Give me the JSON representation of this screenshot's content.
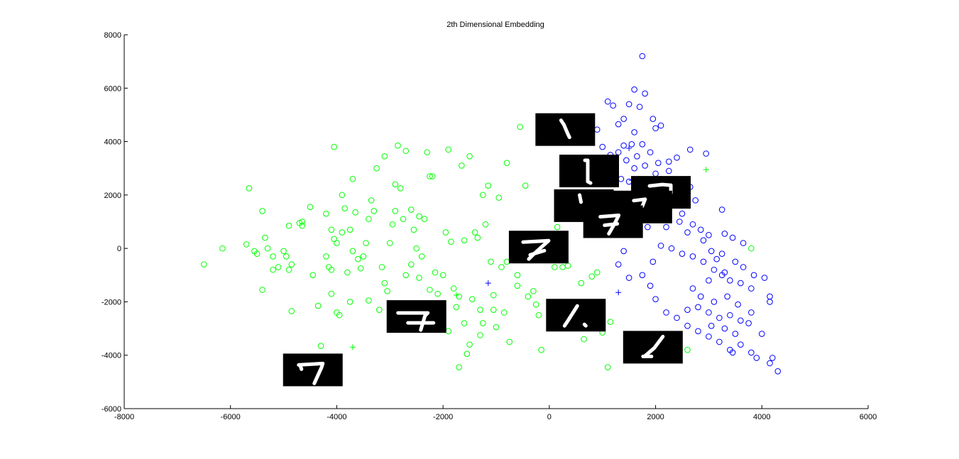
{
  "chart_data": {
    "type": "scatter",
    "title": "2th Dimensional Embedding",
    "xlabel": "",
    "ylabel": "",
    "xlim": [
      -8000,
      6000
    ],
    "ylim": [
      -6000,
      8000
    ],
    "x_ticks": [
      -8000,
      -6000,
      -4000,
      -2000,
      0,
      2000,
      4000,
      6000
    ],
    "y_ticks": [
      -6000,
      -4000,
      -2000,
      0,
      2000,
      4000,
      6000,
      8000
    ],
    "grid": false,
    "legend": "none",
    "series": [
      {
        "color": "#00ff00",
        "marker": "circle",
        "points": [
          [
            -6500,
            -600
          ],
          [
            -6150,
            0
          ],
          [
            -5650,
            2250
          ],
          [
            -5700,
            150
          ],
          [
            -5500,
            -200
          ],
          [
            -5400,
            1400
          ],
          [
            -5350,
            400
          ],
          [
            -5300,
            0
          ],
          [
            -5400,
            -1550
          ],
          [
            -5200,
            -800
          ],
          [
            -5100,
            -700
          ],
          [
            -5000,
            -100
          ],
          [
            -4950,
            -300
          ],
          [
            -4900,
            -800
          ],
          [
            -4850,
            -600
          ],
          [
            -4850,
            -2350
          ],
          [
            -4900,
            850
          ],
          [
            -4700,
            950
          ],
          [
            -4650,
            1000
          ],
          [
            -4500,
            1550
          ],
          [
            -4450,
            -1000
          ],
          [
            -4350,
            -2150
          ],
          [
            -4200,
            1300
          ],
          [
            -4150,
            -700
          ],
          [
            -4100,
            -800
          ],
          [
            -4100,
            700
          ],
          [
            -4050,
            3800
          ],
          [
            -4000,
            200
          ],
          [
            -4000,
            -2400
          ],
          [
            -3950,
            -2500
          ],
          [
            -3900,
            2000
          ],
          [
            -3850,
            1500
          ],
          [
            -3800,
            -900
          ],
          [
            -3750,
            700
          ],
          [
            -3700,
            2600
          ],
          [
            -3700,
            -100
          ],
          [
            -3600,
            -400
          ],
          [
            -3500,
            -300
          ],
          [
            -3450,
            200
          ],
          [
            -3400,
            -1950
          ],
          [
            -3350,
            1800
          ],
          [
            -3300,
            1400
          ],
          [
            -3250,
            3000
          ],
          [
            -3200,
            -2300
          ],
          [
            -3150,
            -700
          ],
          [
            -3100,
            3450
          ],
          [
            -3050,
            -1600
          ],
          [
            -3000,
            200
          ],
          [
            -2950,
            900
          ],
          [
            -2900,
            1400
          ],
          [
            -2850,
            3850
          ],
          [
            -2800,
            2250
          ],
          [
            -2750,
            1100
          ],
          [
            -2700,
            3650
          ],
          [
            -2600,
            -600
          ],
          [
            -2550,
            700
          ],
          [
            -2500,
            0
          ],
          [
            -2450,
            1200
          ],
          [
            -2400,
            -300
          ],
          [
            -2350,
            1100
          ],
          [
            -2300,
            3600
          ],
          [
            -2250,
            2700
          ],
          [
            -2200,
            2700
          ],
          [
            -2150,
            -900
          ],
          [
            -2100,
            -2300
          ],
          [
            -2050,
            -2600
          ],
          [
            -2000,
            -1000
          ],
          [
            -1950,
            600
          ],
          [
            -1900,
            3700
          ],
          [
            -1850,
            250
          ],
          [
            -1800,
            -1500
          ],
          [
            -1750,
            -2200
          ],
          [
            -1700,
            -4450
          ],
          [
            -1650,
            3100
          ],
          [
            -1600,
            -2800
          ],
          [
            -1550,
            -3950
          ],
          [
            -1500,
            3450
          ],
          [
            -1450,
            -1900
          ],
          [
            -1400,
            600
          ],
          [
            -1350,
            400
          ],
          [
            -1300,
            -2300
          ],
          [
            -1250,
            -2800
          ],
          [
            -1200,
            900
          ],
          [
            -1150,
            2350
          ],
          [
            -1100,
            -500
          ],
          [
            -1050,
            -2300
          ],
          [
            -1000,
            -2950
          ],
          [
            -950,
            1900
          ],
          [
            -900,
            -700
          ],
          [
            -850,
            -2400
          ],
          [
            -800,
            3200
          ],
          [
            -750,
            -3500
          ],
          [
            -700,
            -300
          ],
          [
            -600,
            -1400
          ],
          [
            -550,
            4550
          ],
          [
            -500,
            0
          ],
          [
            -450,
            2350
          ],
          [
            -400,
            -1800
          ],
          [
            -300,
            -1600
          ],
          [
            -250,
            -2100
          ],
          [
            -200,
            -2500
          ],
          [
            -150,
            -3800
          ],
          [
            -100,
            -300
          ],
          [
            0,
            -100
          ],
          [
            100,
            -700
          ],
          [
            150,
            800
          ],
          [
            250,
            -700
          ],
          [
            350,
            -650
          ],
          [
            600,
            -1300
          ],
          [
            650,
            -3400
          ],
          [
            800,
            -1050
          ],
          [
            900,
            -900
          ],
          [
            1000,
            -3150
          ],
          [
            1100,
            -4450
          ],
          [
            1150,
            -2750
          ],
          [
            2600,
            -3800
          ],
          [
            3800,
            0
          ],
          [
            -4300,
            -3650
          ],
          [
            -4650,
            850
          ],
          [
            -3550,
            -750
          ],
          [
            -2600,
            1450
          ],
          [
            -3100,
            -1300
          ],
          [
            -2250,
            -1550
          ],
          [
            -4050,
            350
          ],
          [
            -3650,
            1350
          ],
          [
            -1300,
            -3250
          ],
          [
            -1050,
            -1750
          ],
          [
            -700,
            200
          ],
          [
            -1600,
            300
          ],
          [
            -2900,
            2400
          ],
          [
            -3900,
            600
          ],
          [
            -4200,
            -300
          ],
          [
            -2700,
            -1000
          ],
          [
            -1500,
            -3600
          ],
          [
            -1900,
            -3100
          ],
          [
            -1700,
            -1800
          ],
          [
            -2450,
            -1100
          ],
          [
            -3400,
            1100
          ],
          [
            -4100,
            -1700
          ],
          [
            -5550,
            -100
          ],
          [
            -5200,
            -300
          ],
          [
            -1250,
            2000
          ],
          [
            -800,
            -500
          ],
          [
            -3000,
            -2200
          ],
          [
            -2100,
            -1700
          ],
          [
            -600,
            -1000
          ],
          [
            -3750,
            -2000
          ]
        ]
      },
      {
        "color": "#0000ff",
        "marker": "circle",
        "points": [
          [
            1750,
            7200
          ],
          [
            1600,
            5950
          ],
          [
            1800,
            5800
          ],
          [
            1100,
            5500
          ],
          [
            1200,
            5350
          ],
          [
            1500,
            5400
          ],
          [
            1700,
            5300
          ],
          [
            1950,
            4850
          ],
          [
            2100,
            4600
          ],
          [
            1300,
            4650
          ],
          [
            1400,
            4850
          ],
          [
            1600,
            4350
          ],
          [
            2000,
            4500
          ],
          [
            900,
            4450
          ],
          [
            1000,
            3800
          ],
          [
            1150,
            3500
          ],
          [
            1300,
            3600
          ],
          [
            1400,
            3850
          ],
          [
            1550,
            3900
          ],
          [
            1750,
            3900
          ],
          [
            1900,
            3600
          ],
          [
            2050,
            3200
          ],
          [
            2250,
            3250
          ],
          [
            2400,
            3400
          ],
          [
            2650,
            3700
          ],
          [
            2950,
            3550
          ],
          [
            1450,
            3300
          ],
          [
            1600,
            3000
          ],
          [
            1800,
            3100
          ],
          [
            2000,
            2800
          ],
          [
            1350,
            2600
          ],
          [
            1500,
            2500
          ],
          [
            1700,
            2600
          ],
          [
            2100,
            2600
          ],
          [
            2300,
            2400
          ],
          [
            2650,
            2300
          ],
          [
            2750,
            1800
          ],
          [
            3250,
            1450
          ],
          [
            2500,
            1300
          ],
          [
            2700,
            900
          ],
          [
            2850,
            700
          ],
          [
            3000,
            500
          ],
          [
            3300,
            550
          ],
          [
            3450,
            400
          ],
          [
            3650,
            200
          ],
          [
            2300,
            0
          ],
          [
            2500,
            -200
          ],
          [
            2700,
            -300
          ],
          [
            2900,
            -500
          ],
          [
            3100,
            -800
          ],
          [
            3250,
            -1000
          ],
          [
            3400,
            -1200
          ],
          [
            3600,
            -1300
          ],
          [
            3800,
            -1500
          ],
          [
            4050,
            -1100
          ],
          [
            4150,
            -1800
          ],
          [
            2200,
            -2400
          ],
          [
            2400,
            -2600
          ],
          [
            2600,
            -2300
          ],
          [
            2800,
            -2200
          ],
          [
            3000,
            -2400
          ],
          [
            3200,
            -2600
          ],
          [
            3400,
            -2500
          ],
          [
            3600,
            -2700
          ],
          [
            3800,
            -2400
          ],
          [
            2600,
            -2900
          ],
          [
            2800,
            -3100
          ],
          [
            3000,
            -3300
          ],
          [
            3200,
            -3500
          ],
          [
            3400,
            -3800
          ],
          [
            3600,
            -3600
          ],
          [
            3800,
            -3900
          ],
          [
            4000,
            -3200
          ],
          [
            4200,
            -4100
          ],
          [
            4300,
            -4600
          ],
          [
            4150,
            -4300
          ],
          [
            1300,
            -600
          ],
          [
            1400,
            -100
          ],
          [
            1500,
            -1100
          ],
          [
            1750,
            -1000
          ],
          [
            1900,
            -1400
          ],
          [
            2000,
            -1900
          ],
          [
            1950,
            -500
          ],
          [
            2100,
            100
          ],
          [
            1850,
            800
          ],
          [
            2200,
            800
          ],
          [
            2450,
            1000
          ],
          [
            2600,
            600
          ],
          [
            3050,
            -100
          ],
          [
            3250,
            -200
          ],
          [
            3500,
            -500
          ],
          [
            3650,
            -700
          ],
          [
            3850,
            -1000
          ],
          [
            3350,
            -1800
          ],
          [
            3100,
            -2000
          ],
          [
            2850,
            -1800
          ],
          [
            2700,
            -1500
          ],
          [
            3000,
            -1200
          ],
          [
            3300,
            -900
          ],
          [
            3550,
            -2100
          ],
          [
            3750,
            -2800
          ],
          [
            3500,
            -3200
          ],
          [
            3300,
            -3000
          ],
          [
            3050,
            -2900
          ],
          [
            3450,
            -3900
          ],
          [
            3900,
            -4100
          ],
          [
            4150,
            -2000
          ],
          [
            1250,
            3100
          ],
          [
            1100,
            2900
          ],
          [
            1000,
            3300
          ],
          [
            1650,
            3450
          ],
          [
            2250,
            2900
          ],
          [
            2350,
            1750
          ],
          [
            2200,
            2200
          ],
          [
            2900,
            300
          ],
          [
            3150,
            -400
          ]
        ]
      },
      {
        "color": "#0000ff",
        "marker": "plus",
        "points": [
          [
            1500,
            3750
          ],
          [
            1550,
            2550
          ],
          [
            1300,
            -1650
          ],
          [
            -1150,
            -1300
          ],
          [
            2350,
            2050
          ]
        ]
      },
      {
        "color": "#00ff00",
        "marker": "plus",
        "points": [
          [
            -3700,
            -3700
          ],
          [
            -1750,
            -1750
          ],
          [
            2950,
            2950
          ],
          [
            -400,
            -400
          ]
        ]
      }
    ],
    "image_annotations": [
      {
        "glyph": "diag-stroke",
        "cx": 300,
        "cy": 4450
      },
      {
        "glyph": "one-vertical",
        "cx": 750,
        "cy": 2900
      },
      {
        "glyph": "dash-stroke",
        "cx": 2100,
        "cy": 2100
      },
      {
        "glyph": "quote-mark",
        "cx": 650,
        "cy": 1600
      },
      {
        "glyph": "question-mark",
        "cx": 1750,
        "cy": 1550
      },
      {
        "glyph": "seven-a",
        "cx": 1200,
        "cy": 1000
      },
      {
        "glyph": "seven-b",
        "cx": -200,
        "cy": 50
      },
      {
        "glyph": "seven-crossed",
        "cx": -2500,
        "cy": -2550
      },
      {
        "glyph": "slash-dot",
        "cx": 500,
        "cy": -2500
      },
      {
        "glyph": "slash-long",
        "cx": 1950,
        "cy": -3700
      },
      {
        "glyph": "seven-c",
        "cx": -4450,
        "cy": -4550
      }
    ]
  }
}
